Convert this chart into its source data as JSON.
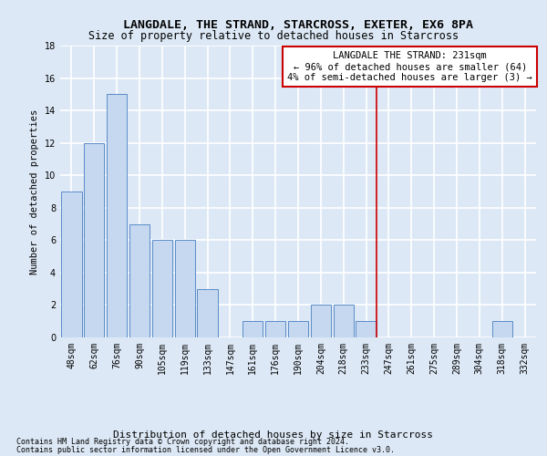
{
  "title": "LANGDALE, THE STRAND, STARCROSS, EXETER, EX6 8PA",
  "subtitle": "Size of property relative to detached houses in Starcross",
  "xlabel": "Distribution of detached houses by size in Starcross",
  "ylabel": "Number of detached properties",
  "categories": [
    "48sqm",
    "62sqm",
    "76sqm",
    "90sqm",
    "105sqm",
    "119sqm",
    "133sqm",
    "147sqm",
    "161sqm",
    "176sqm",
    "190sqm",
    "204sqm",
    "218sqm",
    "233sqm",
    "247sqm",
    "261sqm",
    "275sqm",
    "289sqm",
    "304sqm",
    "318sqm",
    "332sqm"
  ],
  "values": [
    9,
    12,
    15,
    7,
    6,
    6,
    3,
    0,
    1,
    1,
    1,
    2,
    2,
    1,
    0,
    0,
    0,
    0,
    0,
    1,
    0
  ],
  "bar_color": "#c5d8f0",
  "bar_edgecolor": "#5b8cc8",
  "background_color": "#dce8f5",
  "grid_color": "#ffffff",
  "redline_index": 13,
  "annotation_title": "LANGDALE THE STRAND: 231sqm",
  "annotation_line1": "← 96% of detached houses are smaller (64)",
  "annotation_line2": "4% of semi-detached houses are larger (3) →",
  "annotation_box_color": "#ffffff",
  "annotation_box_edgecolor": "#cc0000",
  "redline_color": "#cc0000",
  "ylim": [
    0,
    18
  ],
  "yticks": [
    0,
    2,
    4,
    6,
    8,
    10,
    12,
    14,
    16,
    18
  ],
  "footer1": "Contains HM Land Registry data © Crown copyright and database right 2024.",
  "footer2": "Contains public sector information licensed under the Open Government Licence v3.0.",
  "title_fontsize": 9.5,
  "subtitle_fontsize": 8.5,
  "xlabel_fontsize": 8,
  "ylabel_fontsize": 7.5,
  "tick_fontsize": 7,
  "footer_fontsize": 6,
  "annotation_fontsize": 7.5
}
